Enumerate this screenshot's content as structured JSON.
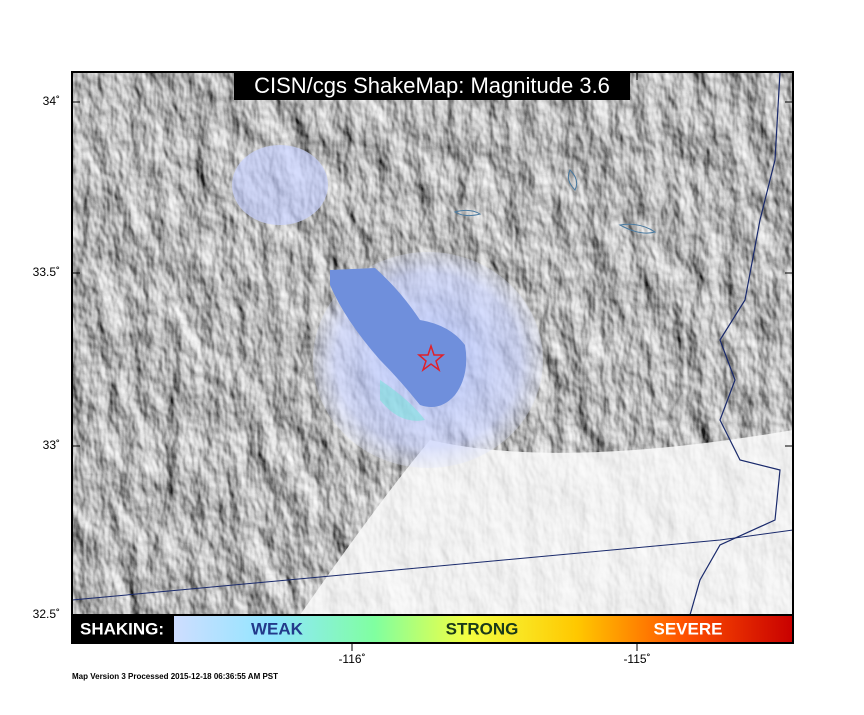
{
  "map": {
    "title": "CISN/cgs ShakeMap: Magnitude 3.6",
    "lat_ticks": [
      "34˚",
      "33.5˚",
      "33˚",
      "32.5˚"
    ],
    "lon_ticks": [
      "-116˚",
      "-115˚"
    ],
    "legend": {
      "heading": "SHAKING:",
      "levels": [
        "WEAK",
        "STRONG",
        "SEVERE"
      ]
    },
    "footer": "Map Version 3 Processed 2015-12-18 06:36:55 AM PST"
  }
}
